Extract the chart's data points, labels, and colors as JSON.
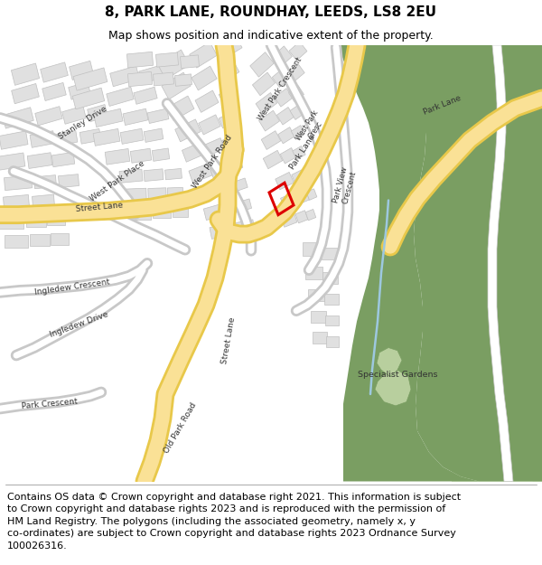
{
  "title": "8, PARK LANE, ROUNDHAY, LEEDS, LS8 2EU",
  "subtitle": "Map shows position and indicative extent of the property.",
  "footer_line1": "Contains OS data © Crown copyright and database right 2021. This information is subject",
  "footer_line2": "to Crown copyright and database rights 2023 and is reproduced with the permission of",
  "footer_line3": "HM Land Registry. The polygons (including the associated geometry, namely x, y",
  "footer_line4": "co-ordinates) are subject to Crown copyright and database rights 2023 Ordnance Survey",
  "footer_line5": "100026316.",
  "bg_color": "#f7f6f2",
  "road_yellow": "#fae196",
  "road_yellow_border": "#e8c84a",
  "road_white": "#ffffff",
  "road_white_border": "#c8c8c8",
  "building_fill": "#e0e0e0",
  "building_border": "#c0c0c0",
  "green_dark": "#7a9e62",
  "green_light": "#c5dcb0",
  "green_park": "#8fad72",
  "water_blue": "#9dc8e0",
  "red_polygon": "#dd0000",
  "title_fontsize": 11,
  "subtitle_fontsize": 9,
  "footer_fontsize": 8
}
